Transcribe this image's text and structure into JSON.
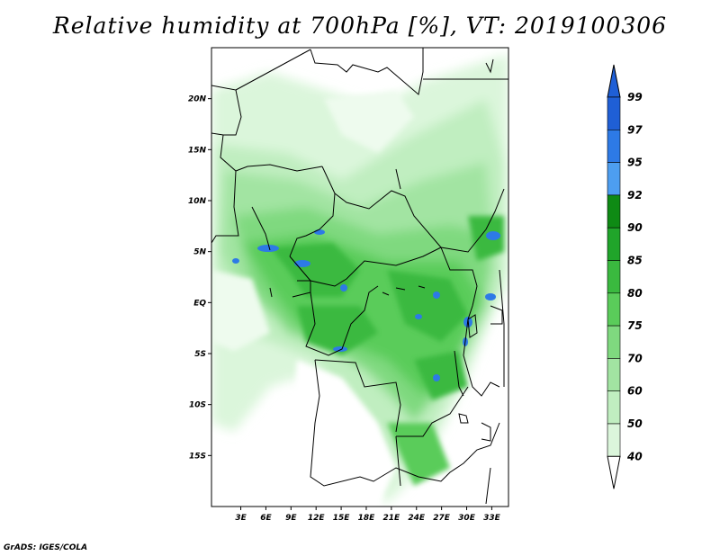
{
  "title": "Relative humidity at 700hPa [%], VT: 2019100306",
  "credit": "GrADS: IGES/COLA",
  "map": {
    "lat_range": [
      -20,
      25
    ],
    "lon_range": [
      -0.5,
      35
    ],
    "lat_ticks": [
      "20N",
      "15N",
      "10N",
      "5N",
      "EQ",
      "5S",
      "10S",
      "15S"
    ],
    "lat_tick_values": [
      20,
      15,
      10,
      5,
      0,
      -5,
      -10,
      -15
    ],
    "lon_ticks": [
      "3E",
      "6E",
      "9E",
      "12E",
      "15E",
      "18E",
      "21E",
      "24E",
      "27E",
      "30E",
      "33E"
    ],
    "lon_tick_values": [
      3,
      6,
      9,
      12,
      15,
      18,
      21,
      24,
      27,
      30,
      33
    ]
  },
  "colorbar": {
    "levels": [
      "99",
      "97",
      "95",
      "92",
      "90",
      "85",
      "80",
      "75",
      "70",
      "60",
      "50",
      "40"
    ],
    "colors": [
      "#1f5fd6",
      "#2d7ae6",
      "#4d9ef0",
      "#0e8a14",
      "#20a52a",
      "#3ab93f",
      "#5acc5a",
      "#7fd97f",
      "#a2e4a2",
      "#c0eec0",
      "#dbf6db",
      "#eefbee"
    ],
    "top_color": "#1f5fd6",
    "bottom_color": "#ffffff"
  },
  "colors": {
    "land_dry": "#ffffff",
    "border": "#000000"
  }
}
